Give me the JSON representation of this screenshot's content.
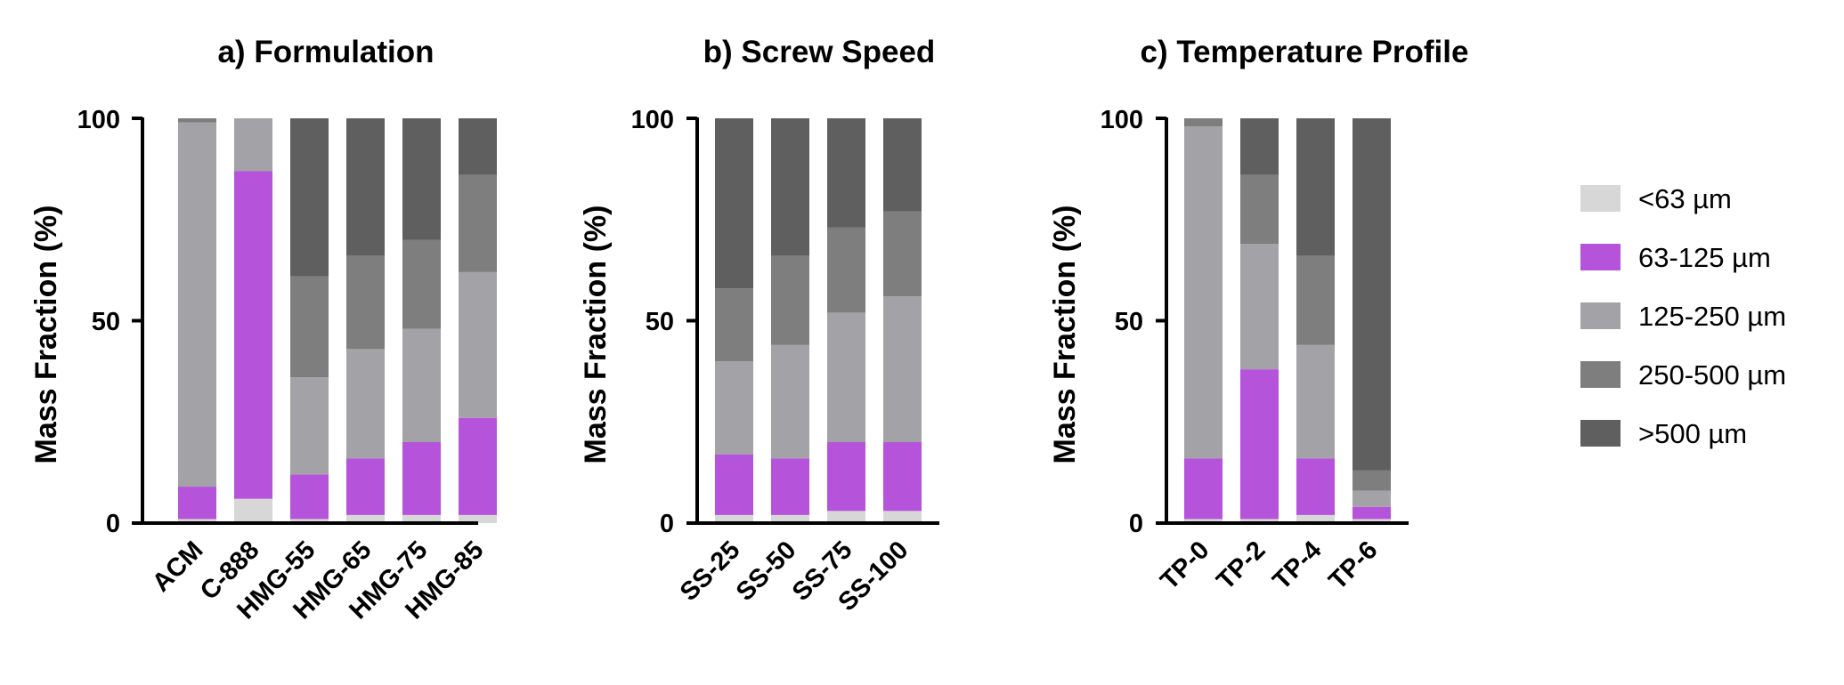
{
  "series_meta": [
    {
      "name": "<63 µm",
      "color": "#d7d7d7"
    },
    {
      "name": "63-125 µm",
      "color": "#b554da"
    },
    {
      "name": "125-250 µm",
      "color": "#a3a2a6"
    },
    {
      "name": "250-500 µm",
      "color": "#7e7e7e"
    },
    {
      "name": ">500 µm",
      "color": "#5f5f5f"
    }
  ],
  "chart_data": [
    {
      "type": "bar",
      "stacked": true,
      "title": "a) Formulation",
      "ylabel": "Mass Fraction (%)",
      "ylim": [
        0,
        100
      ],
      "yticks": [
        "0",
        "50",
        "100"
      ],
      "categories": [
        "ACM",
        "C-888",
        "HMG-55",
        "HMG-65",
        "HMG-75",
        "HMG-85"
      ],
      "series": [
        {
          "name": "<63 µm",
          "values": [
            1,
            6,
            1,
            2,
            2,
            2
          ]
        },
        {
          "name": "63-125 µm",
          "values": [
            8,
            81,
            11,
            14,
            18,
            24
          ]
        },
        {
          "name": "125-250 µm",
          "values": [
            90,
            13,
            24,
            27,
            28,
            36
          ]
        },
        {
          "name": "250-500 µm",
          "values": [
            1,
            0,
            25,
            23,
            22,
            24
          ]
        },
        {
          "name": ">500 µm",
          "values": [
            0,
            0,
            39,
            34,
            30,
            14
          ]
        }
      ]
    },
    {
      "type": "bar",
      "stacked": true,
      "title": "b) Screw Speed",
      "ylabel": "Mass Fraction (%)",
      "ylim": [
        0,
        100
      ],
      "yticks": [
        "0",
        "50",
        "100"
      ],
      "categories": [
        "SS-25",
        "SS-50",
        "SS-75",
        "SS-100"
      ],
      "series": [
        {
          "name": "<63 µm",
          "values": [
            2,
            2,
            3,
            3
          ]
        },
        {
          "name": "63-125 µm",
          "values": [
            15,
            14,
            17,
            17
          ]
        },
        {
          "name": "125-250 µm",
          "values": [
            23,
            28,
            32,
            36
          ]
        },
        {
          "name": "250-500 µm",
          "values": [
            18,
            22,
            21,
            21
          ]
        },
        {
          "name": ">500 µm",
          "values": [
            42,
            34,
            27,
            23
          ]
        }
      ]
    },
    {
      "type": "bar",
      "stacked": true,
      "title": "c) Temperature Profile",
      "ylabel": "Mass Fraction (%)",
      "ylim": [
        0,
        100
      ],
      "yticks": [
        "0",
        "50",
        "100"
      ],
      "categories": [
        "TP-0",
        "TP-2",
        "TP-4",
        "TP-6"
      ],
      "series": [
        {
          "name": "<63 µm",
          "values": [
            1,
            1,
            2,
            1
          ]
        },
        {
          "name": "63-125 µm",
          "values": [
            15,
            37,
            14,
            3
          ]
        },
        {
          "name": "125-250 µm",
          "values": [
            82,
            31,
            28,
            4
          ]
        },
        {
          "name": "250-500 µm",
          "values": [
            2,
            17,
            22,
            5
          ]
        },
        {
          "name": ">500 µm",
          "values": [
            0,
            14,
            34,
            87
          ]
        }
      ]
    }
  ]
}
